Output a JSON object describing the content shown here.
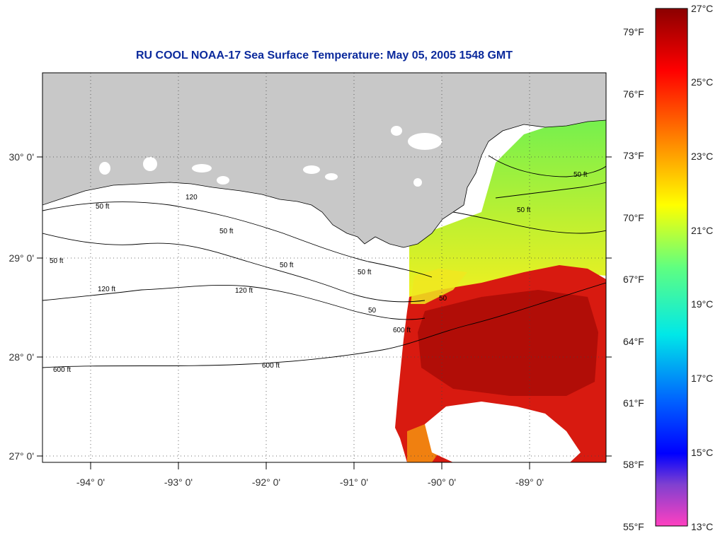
{
  "title": "RU COOL  NOAA-17  Sea Surface Temperature:  May 05, 2005 1548 GMT",
  "lat_labels": [
    "30° 0'",
    "29° 0'",
    "28° 0'",
    "27° 0'"
  ],
  "lon_labels": [
    "-94° 0'",
    "-93° 0'",
    "-92° 0'",
    "-91° 0'",
    "-90° 0'",
    "-89° 0'"
  ],
  "contour_labels": [
    "50 ft",
    "120",
    "50 ft",
    "50 ft",
    "50 ft",
    "120 ft",
    "50 ft",
    "120 ft",
    "600 ft",
    "600 ft",
    "600 ft",
    "50 ft",
    "50 ft",
    "50",
    "50"
  ],
  "colorbar": {
    "fahrenheit": [
      "79°F",
      "76°F",
      "73°F",
      "70°F",
      "67°F",
      "64°F",
      "61°F",
      "58°F",
      "55°F"
    ],
    "celsius": [
      "27°C",
      "25°C",
      "23°C",
      "21°C",
      "19°C",
      "17°C",
      "15°C",
      "13°C"
    ],
    "stops": [
      {
        "t": 0.0,
        "color": "#8b0000"
      },
      {
        "t": 0.12,
        "color": "#ff0000"
      },
      {
        "t": 0.25,
        "color": "#ff8000"
      },
      {
        "t": 0.38,
        "color": "#ffff00"
      },
      {
        "t": 0.5,
        "color": "#60ff80"
      },
      {
        "t": 0.63,
        "color": "#00e8e8"
      },
      {
        "t": 0.76,
        "color": "#0060ff"
      },
      {
        "t": 0.86,
        "color": "#0000ff"
      },
      {
        "t": 0.92,
        "color": "#8040d0"
      },
      {
        "t": 1.0,
        "color": "#ff40c0"
      }
    ]
  },
  "colors": {
    "land": "#c8c8c8",
    "sst_warm": "#d41010",
    "sst_core": "#b00000",
    "sst_green": "#80f040",
    "sst_yellow": "#e8f020",
    "title_color": "#0b2a9c"
  }
}
